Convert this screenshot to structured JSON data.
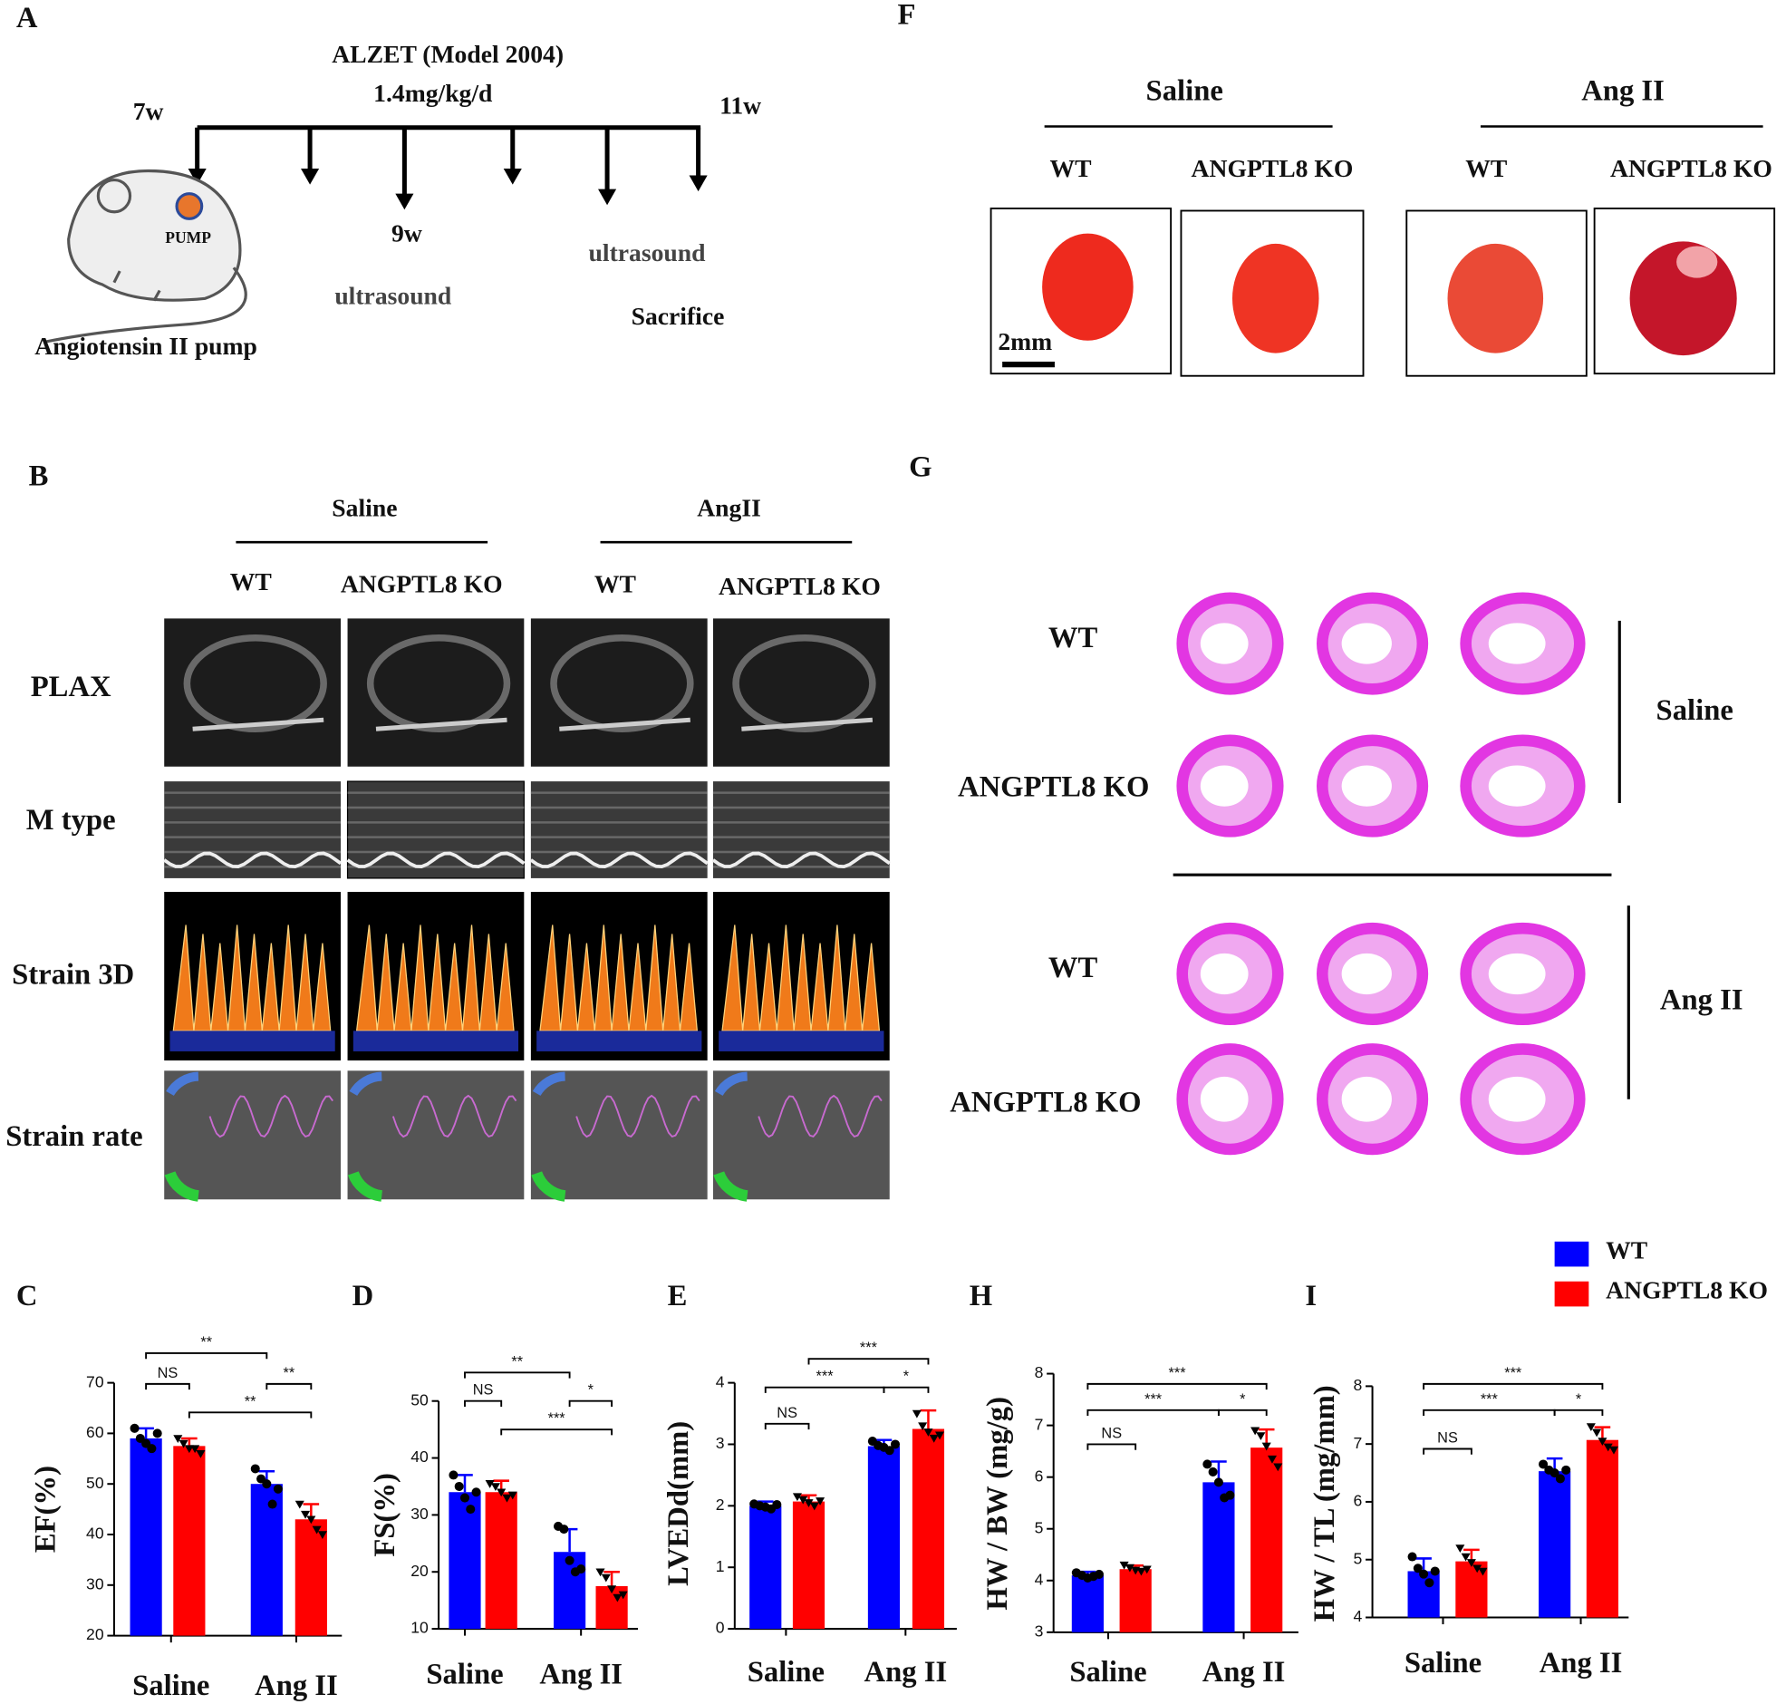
{
  "panel_a": {
    "label": "A",
    "device": "ALZET (Model 2004)",
    "dose": "1.4mg/kg/d",
    "start": "7w",
    "end": "11w",
    "mid": "9w",
    "ultrasound_1": "ultrasound",
    "ultrasound_2": "ultrasound",
    "sacrifice": "Sacrifice",
    "pump": "PUMP",
    "caption": "Angiotensin II pump"
  },
  "panel_b": {
    "label": "B",
    "groups": [
      "Saline",
      "AngII"
    ],
    "columns": [
      "WT",
      "ANGPTL8 KO",
      "WT",
      "ANGPTL8 KO"
    ],
    "rows": [
      "PLAX",
      "M type",
      "Strain 3D",
      "Strain rate"
    ]
  },
  "panel_f": {
    "label": "F",
    "groups": [
      "Saline",
      "Ang II"
    ],
    "columns": [
      "WT",
      "ANGPTL8 KO",
      "WT",
      "ANGPTL8 KO"
    ],
    "scale_bar": "2mm"
  },
  "panel_g": {
    "label": "G",
    "rows": [
      "WT",
      "ANGPTL8 KO",
      "WT",
      "ANGPTL8 KO"
    ],
    "groups": [
      "Saline",
      "Ang II"
    ]
  },
  "chart_data": [
    {
      "panel": "C",
      "type": "bar",
      "y_label": "EF(%)",
      "categories": [
        "Saline",
        "Ang II"
      ],
      "ylim": [
        20,
        70
      ],
      "yticks": [
        20,
        30,
        40,
        50,
        60,
        70
      ],
      "series": [
        {
          "name": "WT",
          "color": "#0000ff",
          "values": [
            59,
            50
          ],
          "errors": [
            2,
            2.5
          ],
          "points": [
            [
              61,
              59,
              58,
              57,
              60
            ],
            [
              53,
              51,
              50,
              46,
              49
            ]
          ]
        },
        {
          "name": "ANGPTL8 KO",
          "color": "#ff0000",
          "values": [
            57.5,
            43
          ],
          "errors": [
            1.5,
            3
          ],
          "points": [
            [
              59,
              58,
              57,
              57,
              56
            ],
            [
              46,
              44,
              43,
              41,
              40
            ]
          ]
        }
      ],
      "annotations": [
        "**",
        "NS",
        "**",
        "**"
      ]
    },
    {
      "panel": "D",
      "type": "bar",
      "y_label": "FS(%)",
      "categories": [
        "Saline",
        "Ang II"
      ],
      "ylim": [
        10,
        50
      ],
      "yticks": [
        10,
        20,
        30,
        40,
        50
      ],
      "series": [
        {
          "name": "WT",
          "color": "#0000ff",
          "values": [
            34,
            23.5
          ],
          "errors": [
            3,
            4
          ],
          "points": [
            [
              37,
              35,
              33,
              31,
              34
            ],
            [
              28,
              27.5,
              22,
              20,
              20.5
            ]
          ]
        },
        {
          "name": "ANGPTL8 KO",
          "color": "#ff0000",
          "values": [
            34,
            17.5
          ],
          "errors": [
            2,
            2.5
          ],
          "points": [
            [
              35.5,
              35,
              34,
              33,
              33.5
            ],
            [
              20,
              19,
              17,
              15.5,
              16
            ]
          ]
        }
      ],
      "annotations": [
        "**",
        "NS",
        "*",
        "***"
      ]
    },
    {
      "panel": "E",
      "type": "bar",
      "y_label": "LVEDd(mm)",
      "categories": [
        "Saline",
        "Ang II"
      ],
      "ylim": [
        0,
        4
      ],
      "yticks": [
        0,
        1,
        2,
        3,
        4
      ],
      "series": [
        {
          "name": "WT",
          "color": "#0000ff",
          "values": [
            2.0,
            2.97
          ],
          "errors": [
            0.07,
            0.1
          ],
          "points": [
            [
              2.03,
              2.0,
              1.98,
              1.95,
              2.02
            ],
            [
              3.05,
              2.98,
              2.95,
              2.9,
              3.0
            ]
          ]
        },
        {
          "name": "ANGPTL8 KO",
          "color": "#ff0000",
          "values": [
            2.07,
            3.25
          ],
          "errors": [
            0.1,
            0.3
          ],
          "points": [
            [
              2.15,
              2.1,
              2.05,
              2.0,
              2.08
            ],
            [
              3.5,
              3.3,
              3.2,
              3.1,
              3.15
            ]
          ]
        }
      ],
      "annotations": [
        "***",
        "***",
        "*",
        "NS"
      ]
    },
    {
      "panel": "H",
      "type": "bar",
      "y_label": "HW / BW (mg/g)",
      "categories": [
        "Saline",
        "Ang II"
      ],
      "ylim": [
        3,
        8
      ],
      "yticks": [
        3,
        4,
        5,
        6,
        7,
        8
      ],
      "series": [
        {
          "name": "WT",
          "color": "#0000ff",
          "values": [
            4.1,
            5.9
          ],
          "errors": [
            0.07,
            0.4
          ],
          "points": [
            [
              4.15,
              4.1,
              4.05,
              4.08,
              4.12
            ],
            [
              6.25,
              6.1,
              5.9,
              5.6,
              5.65
            ]
          ]
        },
        {
          "name": "ANGPTL8 KO",
          "color": "#ff0000",
          "values": [
            4.22,
            6.57
          ],
          "errors": [
            0.07,
            0.35
          ],
          "points": [
            [
              4.3,
              4.25,
              4.2,
              4.18,
              4.22
            ],
            [
              6.9,
              6.8,
              6.6,
              6.35,
              6.2
            ]
          ]
        }
      ],
      "annotations": [
        "***",
        "***",
        "*",
        "NS"
      ]
    },
    {
      "panel": "I",
      "type": "bar",
      "y_label": "HW / TL (mg/mm)",
      "categories": [
        "Saline",
        "Ang II"
      ],
      "ylim": [
        4,
        8
      ],
      "yticks": [
        4,
        5,
        6,
        7,
        8
      ],
      "series": [
        {
          "name": "WT",
          "color": "#0000ff",
          "values": [
            4.8,
            6.53
          ],
          "errors": [
            0.22,
            0.22
          ],
          "points": [
            [
              5.05,
              4.85,
              4.75,
              4.6,
              4.8
            ],
            [
              6.65,
              6.55,
              6.5,
              6.4,
              6.55
            ]
          ]
        },
        {
          "name": "ANGPTL8 KO",
          "color": "#ff0000",
          "values": [
            4.97,
            7.07
          ],
          "errors": [
            0.2,
            0.22
          ],
          "points": [
            [
              5.2,
              5.05,
              4.95,
              4.85,
              4.8
            ],
            [
              7.3,
              7.2,
              7.05,
              6.95,
              6.9
            ]
          ]
        }
      ],
      "annotations": [
        "***",
        "***",
        "*",
        "NS"
      ]
    }
  ]
}
